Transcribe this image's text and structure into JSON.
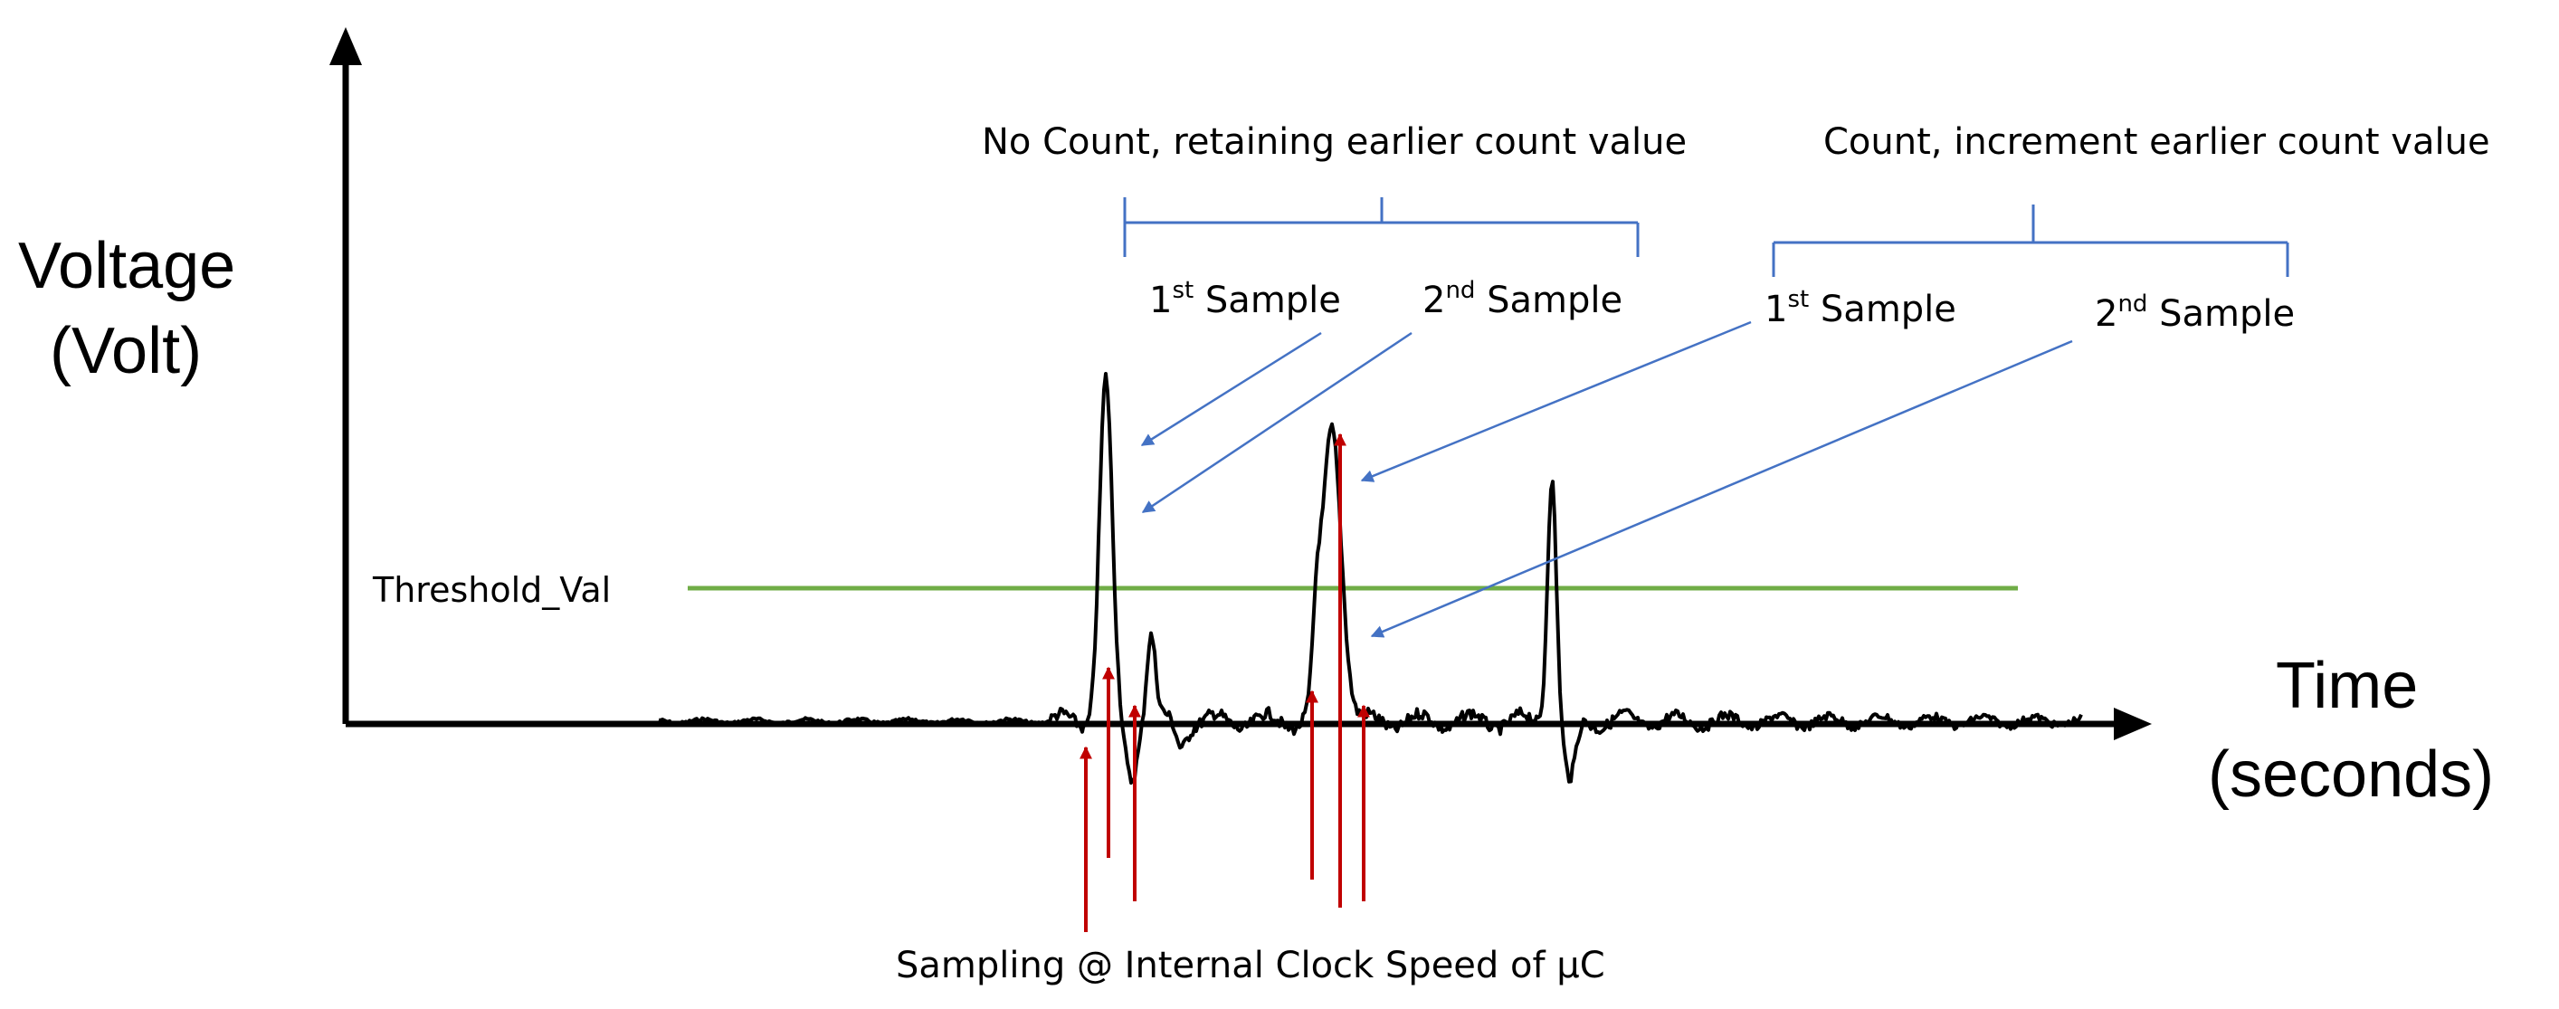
{
  "axes": {
    "y_label_line1": "Voltage",
    "y_label_line2": "(Volt)",
    "x_label_line1": "Time",
    "x_label_line2": "(seconds)"
  },
  "threshold": {
    "label": "Threshold_Val",
    "color": "#70ad47"
  },
  "groups": [
    {
      "label": "No Count, retaining earlier count value",
      "samples": [
        {
          "base": "1",
          "sup": "st",
          "rest": " Sample"
        },
        {
          "base": "2",
          "sup": "nd",
          "rest": " Sample"
        }
      ]
    },
    {
      "label": "Count, increment earlier count value",
      "samples": [
        {
          "base": "1",
          "sup": "st",
          "rest": " Sample"
        },
        {
          "base": "2",
          "sup": "nd",
          "rest": " Sample"
        }
      ]
    }
  ],
  "sampling": {
    "label": "Sampling @ Internal Clock Speed of µC",
    "arrow_color": "#c00000"
  },
  "colors": {
    "signal": "#000000",
    "bracket": "#4472c4",
    "pointer": "#4472c4"
  }
}
